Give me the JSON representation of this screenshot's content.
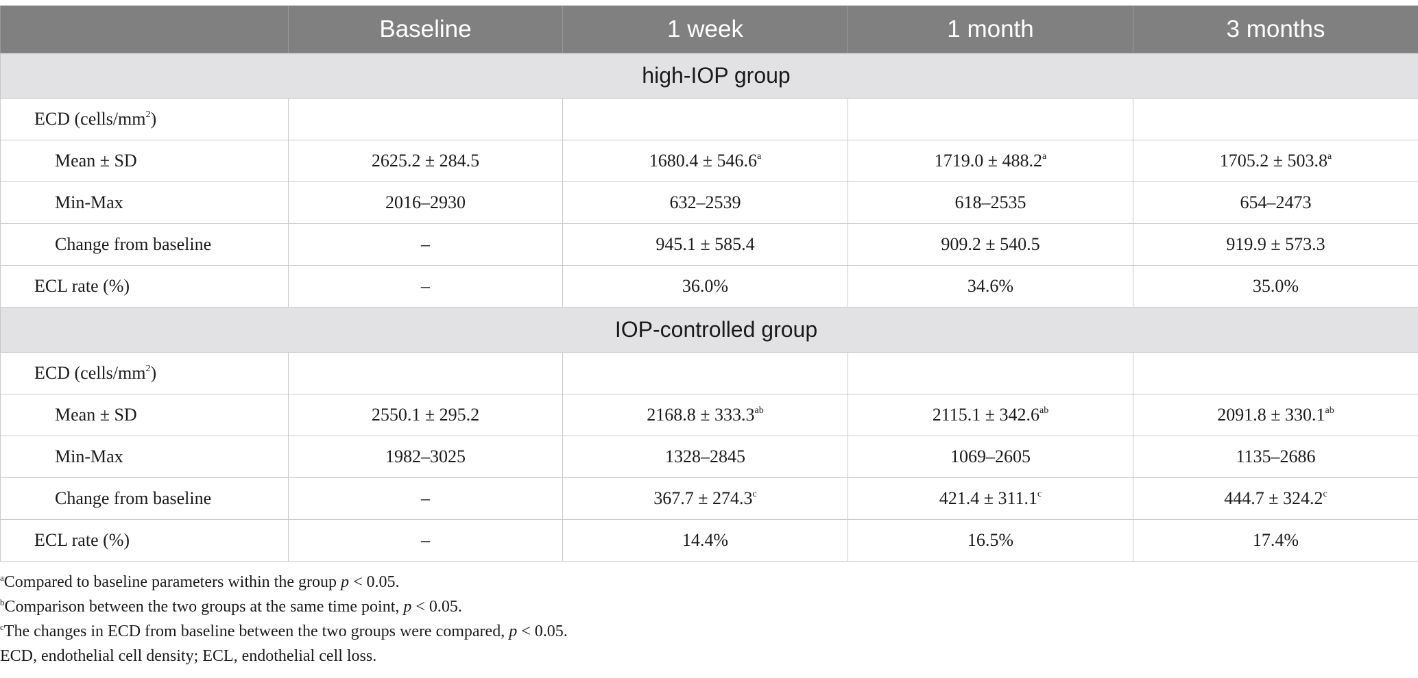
{
  "header": {
    "col0": "",
    "col1": "Baseline",
    "col2": "1 week",
    "col3": "1 month",
    "col4": "3 months"
  },
  "groups": [
    {
      "title": "high-IOP group",
      "ecd_label": "ECD (cells/mm",
      "ecd_label_sup": "2",
      "ecd_label_end": ")",
      "rows": {
        "mean": {
          "label": "Mean ± SD",
          "v1": "2625.2 ± 284.5",
          "v1_sup": "",
          "v2": "1680.4 ± 546.6",
          "v2_sup": "a",
          "v3": "1719.0 ± 488.2",
          "v3_sup": "a",
          "v4": "1705.2 ± 503.8",
          "v4_sup": "a"
        },
        "minmax": {
          "label": "Min-Max",
          "v1": "2016–2930",
          "v2": "632–2539",
          "v3": "618–2535",
          "v4": "654–2473"
        },
        "change": {
          "label": "Change from baseline",
          "v1": "–",
          "v1_sup": "",
          "v2": "945.1 ± 585.4",
          "v2_sup": "",
          "v3": "909.2 ± 540.5",
          "v3_sup": "",
          "v4": "919.9 ± 573.3",
          "v4_sup": ""
        },
        "ecl": {
          "label": "ECL rate (%)",
          "v1": "–",
          "v2": "36.0%",
          "v3": "34.6%",
          "v4": "35.0%"
        }
      }
    },
    {
      "title": "IOP-controlled group",
      "ecd_label": "ECD (cells/mm",
      "ecd_label_sup": "2",
      "ecd_label_end": ")",
      "rows": {
        "mean": {
          "label": "Mean ± SD",
          "v1": "2550.1 ± 295.2",
          "v1_sup": "",
          "v2": "2168.8 ± 333.3",
          "v2_sup": "ab",
          "v3": "2115.1 ± 342.6",
          "v3_sup": "ab",
          "v4": "2091.8 ± 330.1",
          "v4_sup": "ab"
        },
        "minmax": {
          "label": "Min-Max",
          "v1": "1982–3025",
          "v2": "1328–2845",
          "v3": "1069–2605",
          "v4": "1135–2686"
        },
        "change": {
          "label": "Change from baseline",
          "v1": "–",
          "v1_sup": "",
          "v2": "367.7 ± 274.3",
          "v2_sup": "c",
          "v3": "421.4 ± 311.1",
          "v3_sup": "c",
          "v4": "444.7 ± 324.2",
          "v4_sup": "c"
        },
        "ecl": {
          "label": "ECL rate (%)",
          "v1": "–",
          "v2": "14.4%",
          "v3": "16.5%",
          "v4": "17.4%"
        }
      }
    }
  ],
  "footnotes": {
    "a": {
      "mark": "a",
      "text": "Compared to baseline parameters within the group ",
      "p": "p",
      "tail": " < 0.05."
    },
    "b": {
      "mark": "b",
      "text": "Comparison between the two groups at the same time point, ",
      "p": "p",
      "tail": " < 0.05."
    },
    "c": {
      "mark": "c",
      "text": "The changes in ECD from baseline between the two groups were compared, ",
      "p": "p",
      "tail": " < 0.05."
    },
    "abbrev": "ECD, endothelial cell density; ECL, endothelial cell loss."
  }
}
